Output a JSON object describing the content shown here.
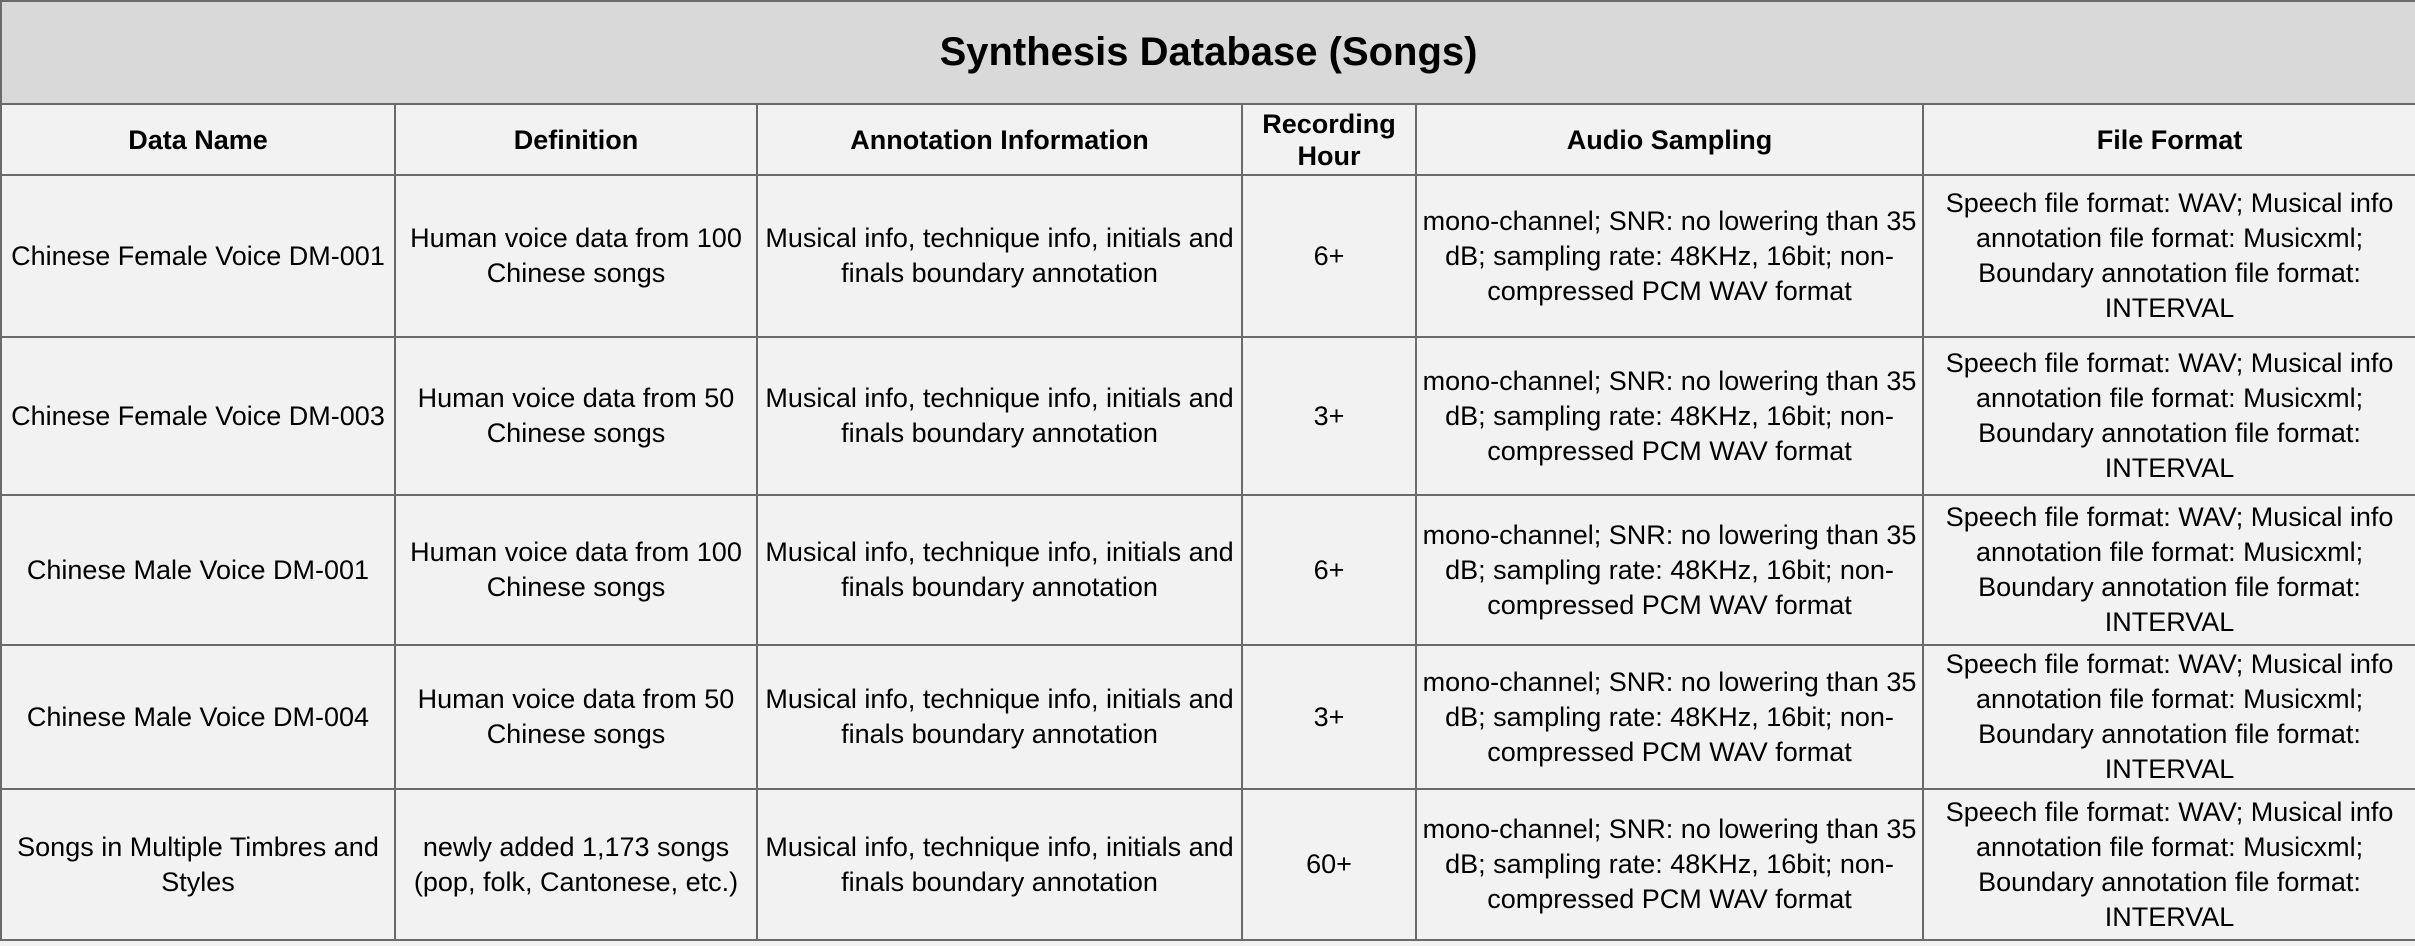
{
  "table": {
    "title": "Synthesis Database (Songs)",
    "columns": [
      "Data Name",
      "Definition",
      "Annotation Information",
      "Recording Hour",
      "Audio Sampling",
      "File Format"
    ],
    "rows": [
      [
        "Chinese Female Voice DM-001",
        "Human voice data from 100 Chinese songs",
        "Musical info, technique info, initials and finals boundary annotation",
        "6+",
        "mono-channel; SNR: no lowering than 35 dB; sampling rate: 48KHz, 16bit; non-compressed PCM WAV format",
        "Speech file format: WAV; Musical info annotation file format: Musicxml; Boundary annotation file format: INTERVAL"
      ],
      [
        "Chinese Female Voice DM-003",
        "Human voice data from 50 Chinese songs",
        "Musical info, technique info, initials and finals boundary annotation",
        "3+",
        "mono-channel; SNR: no lowering than 35 dB; sampling rate: 48KHz, 16bit; non-compressed PCM WAV format",
        "Speech file format: WAV; Musical info annotation file format: Musicxml; Boundary annotation file format: INTERVAL"
      ],
      [
        "Chinese Male Voice DM-001",
        "Human voice data from 100 Chinese songs",
        "Musical info, technique info, initials and finals boundary annotation",
        "6+",
        "mono-channel; SNR: no lowering than 35 dB; sampling rate: 48KHz, 16bit; non-compressed PCM WAV format",
        "Speech file format: WAV; Musical info annotation file format: Musicxml; Boundary annotation file format: INTERVAL"
      ],
      [
        "Chinese Male Voice DM-004",
        "Human voice data from 50 Chinese songs",
        "Musical info, technique info, initials and finals boundary annotation",
        "3+",
        "mono-channel; SNR: no lowering than 35 dB; sampling rate: 48KHz, 16bit; non-compressed PCM WAV format",
        "Speech file format: WAV; Musical info annotation file format: Musicxml; Boundary annotation file format: INTERVAL"
      ],
      [
        "Songs in Multiple Timbres and Styles",
        "newly added 1,173 songs (pop, folk, Cantonese, etc.)",
        "Musical info, technique info, initials and finals boundary annotation",
        "60+",
        "mono-channel; SNR: no lowering than 35 dB; sampling rate: 48KHz, 16bit; non-compressed PCM WAV format",
        "Speech file format: WAV; Musical info annotation file format: Musicxml; Boundary annotation file format: INTERVAL"
      ]
    ]
  }
}
